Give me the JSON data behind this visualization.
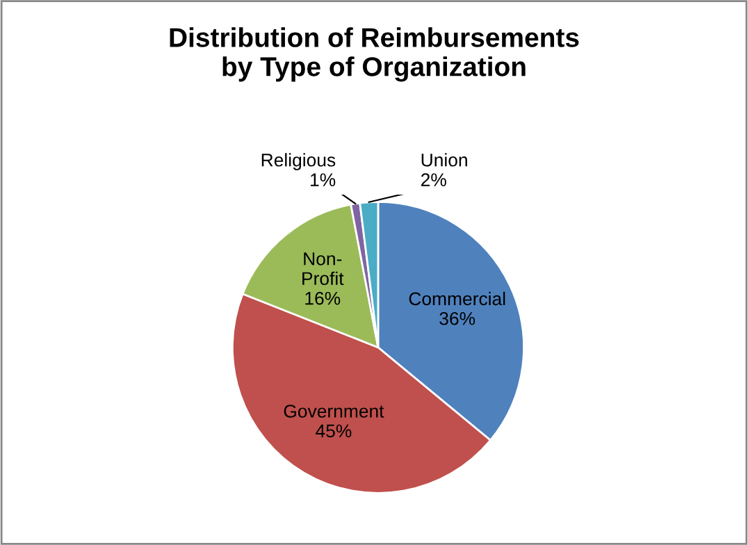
{
  "chart_data": {
    "type": "pie",
    "title": "Distribution of Reimbursements\nby Type of Organization",
    "categories": [
      "Commercial",
      "Government",
      "Non-Profit",
      "Religious",
      "Union"
    ],
    "values": [
      36,
      45,
      16,
      1,
      2
    ],
    "colors": [
      "#4f81bd",
      "#c0504d",
      "#9bbb59",
      "#8064a2",
      "#4bacc6"
    ],
    "value_labels": [
      "36%",
      "45%",
      "16%",
      "1%",
      "2%"
    ],
    "legend": false
  }
}
